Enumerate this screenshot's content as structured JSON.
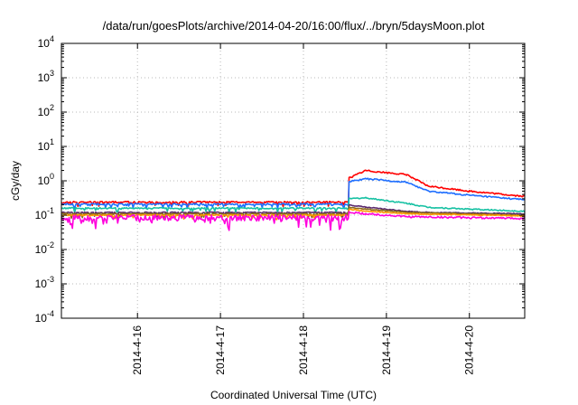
{
  "chart_data": {
    "type": "line",
    "title": "/data/run/goesPlots/archive/2014-04-20/16:00/flux/../bryn/5daysMoon.plot",
    "xlabel": "Coordinated Universal Time (UTC)",
    "ylabel": "cGy/day",
    "y_scale": "log",
    "ylim": [
      0.0001,
      10000
    ],
    "y_ticks": [
      {
        "value": 0.0001,
        "base": "10",
        "exp": "-4"
      },
      {
        "value": 0.001,
        "base": "10",
        "exp": "-3"
      },
      {
        "value": 0.01,
        "base": "10",
        "exp": "-2"
      },
      {
        "value": 0.1,
        "base": "10",
        "exp": "-1"
      },
      {
        "value": 1,
        "base": "10",
        "exp": "0"
      },
      {
        "value": 10,
        "base": "10",
        "exp": "1"
      },
      {
        "value": 100,
        "base": "10",
        "exp": "2"
      },
      {
        "value": 1000,
        "base": "10",
        "exp": "3"
      },
      {
        "value": 10000,
        "base": "10",
        "exp": "4"
      }
    ],
    "xlim": [
      "2014-04-15 02:00",
      "2014-04-20 16:00"
    ],
    "x_ticks": [
      {
        "value": "2014-04-16 00:00",
        "label": "2014-4-16"
      },
      {
        "value": "2014-04-17 00:00",
        "label": "2014-4-17"
      },
      {
        "value": "2014-04-18 00:00",
        "label": "2014-4-18"
      },
      {
        "value": "2014-04-19 00:00",
        "label": "2014-4-19"
      },
      {
        "value": "2014-04-20 00:00",
        "label": "2014-4-20"
      }
    ],
    "grid": true,
    "legend": "none",
    "series": [
      {
        "color": "#ff0000",
        "baseline": 0.24,
        "noise": 0.05,
        "points": [
          [
            "2014-04-18 13:00",
            0.24
          ],
          [
            "2014-04-18 13:12",
            1.2
          ],
          [
            "2014-04-18 18:00",
            2.0
          ],
          [
            "2014-04-19 06:00",
            1.5
          ],
          [
            "2014-04-19 12:00",
            0.7
          ],
          [
            "2014-04-20 00:00",
            0.5
          ],
          [
            "2014-04-20 16:00",
            0.35
          ]
        ]
      },
      {
        "color": "#1f6fff",
        "baseline": 0.21,
        "noise": 0.05,
        "points": [
          [
            "2014-04-18 13:00",
            0.21
          ],
          [
            "2014-04-18 13:12",
            0.95
          ],
          [
            "2014-04-18 18:00",
            1.15
          ],
          [
            "2014-04-19 06:00",
            0.9
          ],
          [
            "2014-04-19 12:00",
            0.5
          ],
          [
            "2014-04-20 00:00",
            0.38
          ],
          [
            "2014-04-20 16:00",
            0.28
          ]
        ]
      },
      {
        "color": "#17c1a3",
        "baseline": 0.16,
        "noise": 0.04,
        "points": [
          [
            "2014-04-18 13:00",
            0.16
          ],
          [
            "2014-04-18 13:12",
            0.3
          ],
          [
            "2014-04-18 18:00",
            0.32
          ],
          [
            "2014-04-19 06:00",
            0.22
          ],
          [
            "2014-04-19 12:00",
            0.17
          ],
          [
            "2014-04-20 00:00",
            0.15
          ],
          [
            "2014-04-20 16:00",
            0.13
          ]
        ]
      },
      {
        "color": "#5a2a6e",
        "baseline": 0.12,
        "noise": 0.03,
        "points": [
          [
            "2014-04-18 13:00",
            0.12
          ],
          [
            "2014-04-18 13:12",
            0.2
          ],
          [
            "2014-04-18 18:00",
            0.17
          ],
          [
            "2014-04-19 06:00",
            0.13
          ],
          [
            "2014-04-19 12:00",
            0.12
          ],
          [
            "2014-04-20 16:00",
            0.11
          ]
        ]
      },
      {
        "color": "#8c6a1a",
        "baseline": 0.11,
        "noise": 0.03,
        "points": [
          [
            "2014-04-18 13:00",
            0.11
          ],
          [
            "2014-04-18 13:12",
            0.17
          ],
          [
            "2014-04-18 18:00",
            0.15
          ],
          [
            "2014-04-19 06:00",
            0.12
          ],
          [
            "2014-04-20 16:00",
            0.1
          ]
        ]
      },
      {
        "color": "#ff9900",
        "baseline": 0.1,
        "noise": 0.03,
        "points": [
          [
            "2014-04-18 13:00",
            0.1
          ],
          [
            "2014-04-18 13:12",
            0.15
          ],
          [
            "2014-04-18 18:00",
            0.13
          ],
          [
            "2014-04-19 06:00",
            0.11
          ],
          [
            "2014-04-20 16:00",
            0.095
          ]
        ]
      },
      {
        "color": "#ff00dd",
        "baseline": 0.085,
        "noise": 0.2,
        "dips": true,
        "points": [
          [
            "2014-04-18 13:00",
            0.085
          ],
          [
            "2014-04-18 13:12",
            0.12
          ],
          [
            "2014-04-18 18:00",
            0.11
          ],
          [
            "2014-04-19 06:00",
            0.09
          ],
          [
            "2014-04-20 16:00",
            0.08
          ]
        ]
      }
    ]
  }
}
